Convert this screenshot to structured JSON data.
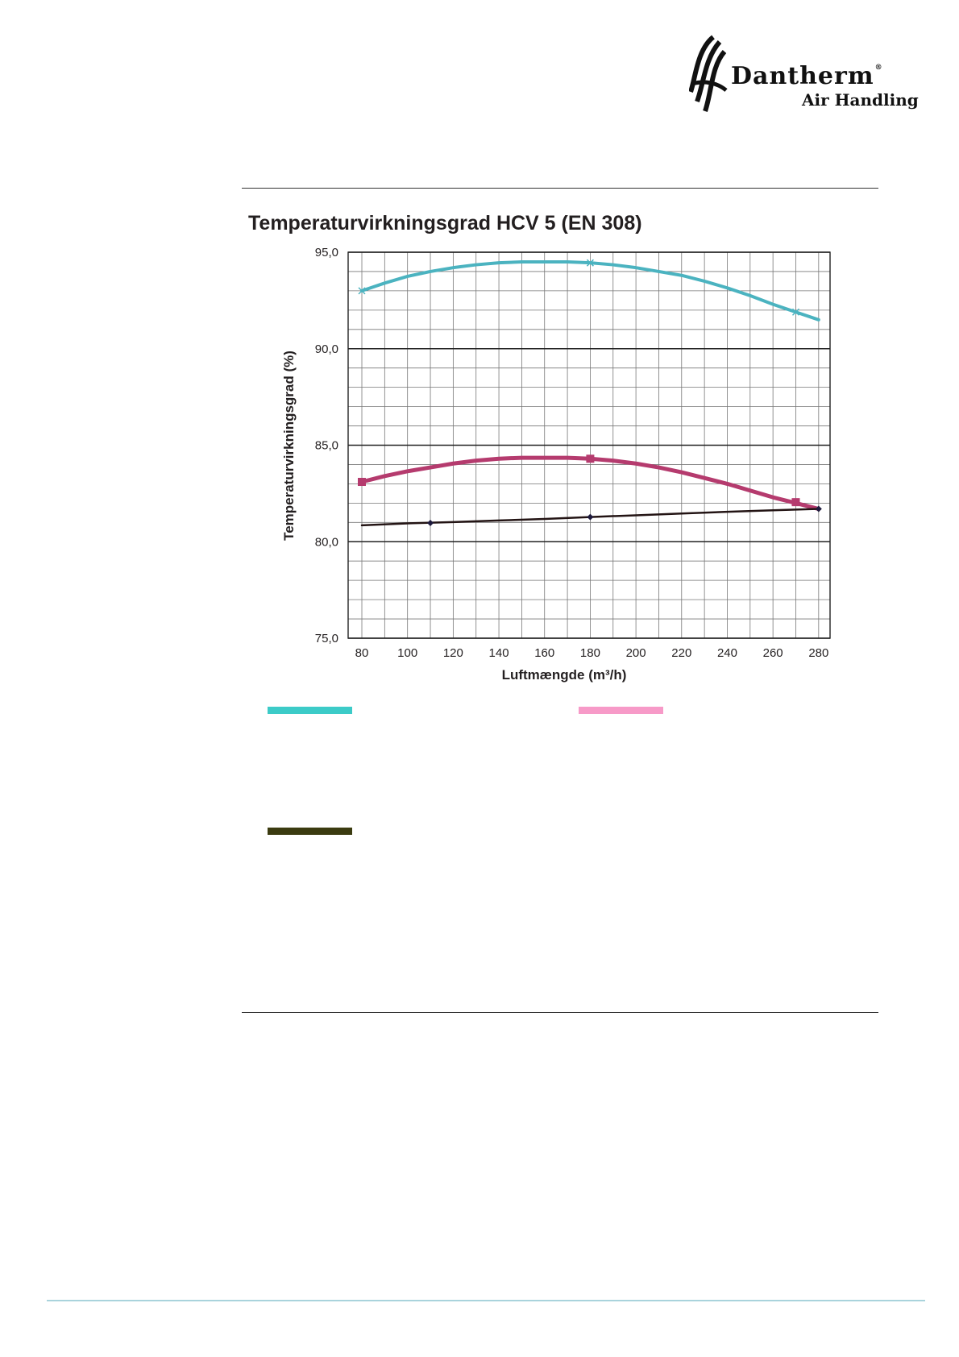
{
  "brand": {
    "name": "Dantherm",
    "registered": "®",
    "tagline": "Air Handling"
  },
  "chart_data": {
    "type": "line",
    "title": "Temperaturvirkningsgrad HCV 5 (EN 308)",
    "xlabel": "Luftmængde (m³/h)",
    "ylabel": "Temperaturvirkningsgrad (%)",
    "xlim": [
      74,
      285
    ],
    "ylim": [
      75,
      95
    ],
    "x_ticks": [
      80,
      100,
      120,
      140,
      160,
      180,
      200,
      220,
      240,
      260,
      280
    ],
    "x_tick_labels": [
      "80",
      "100",
      "120",
      "140",
      "160",
      "180",
      "200",
      "220",
      "240",
      "260",
      "280"
    ],
    "y_ticks": [
      75,
      80,
      85,
      90,
      95
    ],
    "y_tick_labels": [
      "75,0",
      "80,0",
      "85,0",
      "90,0",
      "95,0"
    ],
    "grid": true,
    "series": [
      {
        "color": "#4bb3c0",
        "legend_color": "#3ccbc8",
        "marker": "x",
        "x": [
          80,
          90,
          100,
          110,
          120,
          130,
          140,
          150,
          160,
          170,
          180,
          190,
          200,
          210,
          220,
          230,
          240,
          250,
          260,
          270,
          280
        ],
        "values": [
          93.0,
          93.4,
          93.75,
          94.0,
          94.2,
          94.35,
          94.45,
          94.5,
          94.5,
          94.5,
          94.45,
          94.35,
          94.2,
          94.0,
          93.8,
          93.5,
          93.15,
          92.75,
          92.3,
          91.9,
          91.5
        ],
        "marker_x": [
          80,
          180,
          270
        ],
        "marker_values": [
          93.0,
          94.45,
          91.9
        ]
      },
      {
        "color": "#b53b6e",
        "legend_color": "#f79ac8",
        "marker": "square",
        "x": [
          80,
          90,
          100,
          110,
          120,
          130,
          140,
          150,
          160,
          170,
          180,
          190,
          200,
          210,
          220,
          230,
          240,
          250,
          260,
          270,
          280
        ],
        "values": [
          83.1,
          83.4,
          83.65,
          83.85,
          84.05,
          84.2,
          84.3,
          84.35,
          84.35,
          84.35,
          84.3,
          84.2,
          84.05,
          83.85,
          83.6,
          83.3,
          83.0,
          82.65,
          82.3,
          82.0,
          81.7
        ],
        "marker_x": [
          80,
          180,
          270
        ],
        "marker_values": [
          83.1,
          84.3,
          82.05
        ]
      },
      {
        "color": "#231414",
        "legend_color": "#3b3b10",
        "marker": "diamond",
        "x": [
          80,
          100,
          120,
          140,
          160,
          180,
          200,
          220,
          240,
          260,
          280
        ],
        "values": [
          80.85,
          80.95,
          81.02,
          81.1,
          81.18,
          81.28,
          81.37,
          81.46,
          81.55,
          81.63,
          81.7
        ],
        "marker_x": [
          110,
          180,
          280
        ],
        "marker_values": [
          80.97,
          81.28,
          81.7
        ]
      }
    ]
  }
}
